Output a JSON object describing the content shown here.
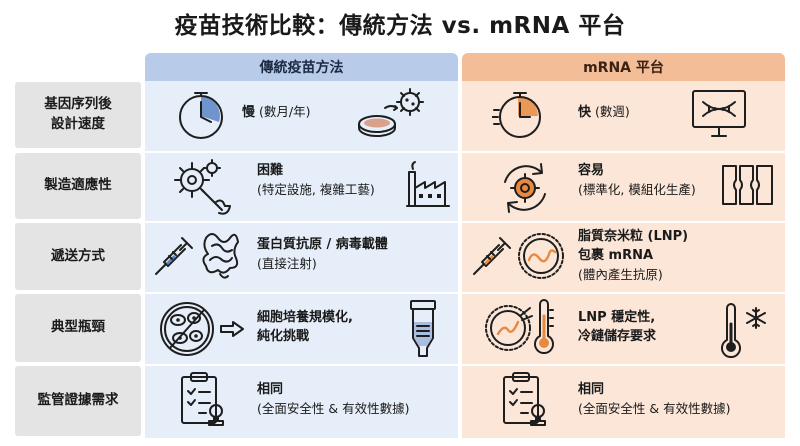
{
  "title": "疫苗技術比較：傳統方法 vs. mRNA 平台",
  "columns": {
    "traditional": "傳統疫苗方法",
    "mrna": "mRNA 平台"
  },
  "rows": [
    {
      "label": [
        "基因序列後",
        "設計速度"
      ],
      "traditional": {
        "main": "慢",
        "detail": "(數月/年)",
        "icons": [
          "clock-icon",
          "virus-culture-icon"
        ]
      },
      "mrna": {
        "main": "快",
        "detail": "(數週)",
        "icons": [
          "clock-fast-icon",
          "computer-dna-icon"
        ]
      }
    },
    {
      "label": [
        "製造適應性"
      ],
      "traditional": {
        "main": "困難",
        "detail": "(特定設施, 複雜工藝)",
        "icons": [
          "gear-wrench-icon",
          "factory-icon"
        ]
      },
      "mrna": {
        "main": "容易",
        "detail": "(標準化, 模組化生產)",
        "icons": [
          "gear-cycle-icon",
          "modular-blocks-icon"
        ]
      }
    },
    {
      "label": [
        "遞送方式"
      ],
      "traditional": {
        "main": "蛋白質抗原 / 病毒載體",
        "detail": "(直接注射)",
        "icons": [
          "syringe-icon",
          "protein-icon"
        ]
      },
      "mrna": {
        "line1": "脂質奈米粒 (LNP)",
        "line2": "包裹 mRNA",
        "detail": "(體內產生抗原)",
        "icons": [
          "syringe-icon",
          "lnp-particle-icon"
        ]
      }
    },
    {
      "label": [
        "典型瓶頸"
      ],
      "traditional": {
        "line1": "細胞培養規模化,",
        "line2": "純化挑戰",
        "icons": [
          "cell-culture-icon",
          "purification-column-icon"
        ]
      },
      "mrna": {
        "line1": "LNP 穩定性,",
        "line2": "冷鏈儲存要求",
        "icons": [
          "lnp-particle-icon",
          "thermometer-icon",
          "snowflake-icon"
        ]
      }
    },
    {
      "label": [
        "監管證據需求"
      ],
      "traditional": {
        "main": "相同",
        "detail": "(全面安全性 & 有效性數據)",
        "icons": [
          "clipboard-icon"
        ]
      },
      "mrna": {
        "main": "相同",
        "detail": "(全面安全性 & 有效性數據)",
        "icons": [
          "clipboard-icon"
        ]
      }
    }
  ],
  "colors": {
    "traditional_header": "#b8cbe8",
    "traditional_column": "#e6eef9",
    "mrna_header": "#f3bd98",
    "mrna_column": "#fbe6d8",
    "label_background": "#e4e4e4",
    "traditional_accent": "#5b84c7",
    "mrna_accent": "#e8893f"
  }
}
